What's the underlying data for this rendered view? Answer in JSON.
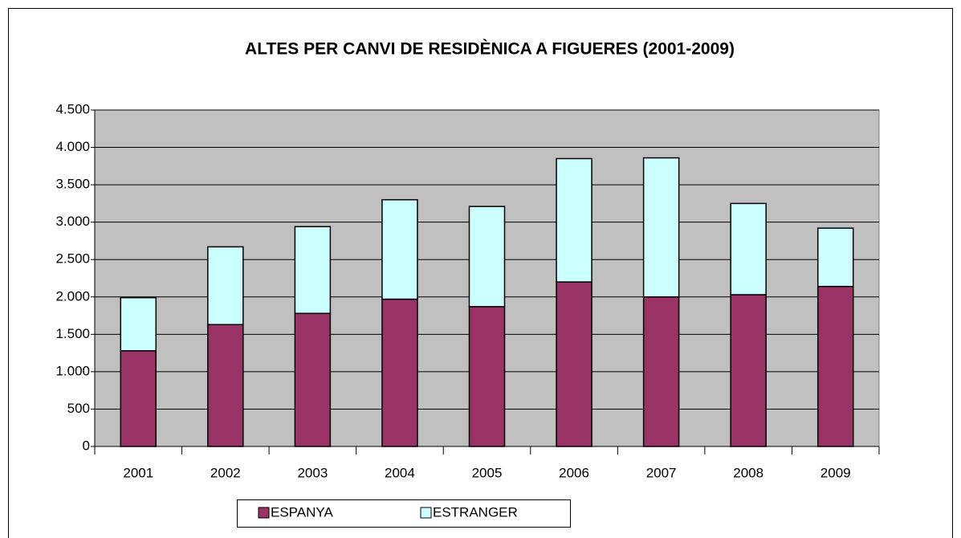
{
  "chart_data": {
    "type": "stacked_bar",
    "title": "ALTES PER CANVI DE RESIDÈNICA A FIGUERES (2001-2009)",
    "categories": [
      "2001",
      "2002",
      "2003",
      "2004",
      "2005",
      "2006",
      "2007",
      "2008",
      "2009"
    ],
    "series": [
      {
        "name": "ESPANYA",
        "color": "#993366",
        "values": [
          1280,
          1630,
          1780,
          1970,
          1870,
          2200,
          2000,
          2030,
          2140
        ]
      },
      {
        "name": "ESTRANGER",
        "color": "#ccffff",
        "values": [
          710,
          1040,
          1160,
          1330,
          1340,
          1650,
          1860,
          1220,
          780
        ]
      }
    ],
    "ylim": [
      0,
      4500
    ],
    "yticks": [
      0,
      500,
      {
        "value": 1000,
        "label": "1.000"
      },
      {
        "value": 1500,
        "label": "1.500"
      },
      {
        "value": 2000,
        "label": "2.000"
      },
      {
        "value": 2500,
        "label": "2.500"
      },
      {
        "value": 3000,
        "label": "3.000"
      },
      {
        "value": 3500,
        "label": "3.500"
      },
      {
        "value": 4000,
        "label": "4.000"
      },
      {
        "value": 4500,
        "label": "4.500"
      }
    ],
    "grid": true,
    "legend": "bottom"
  }
}
